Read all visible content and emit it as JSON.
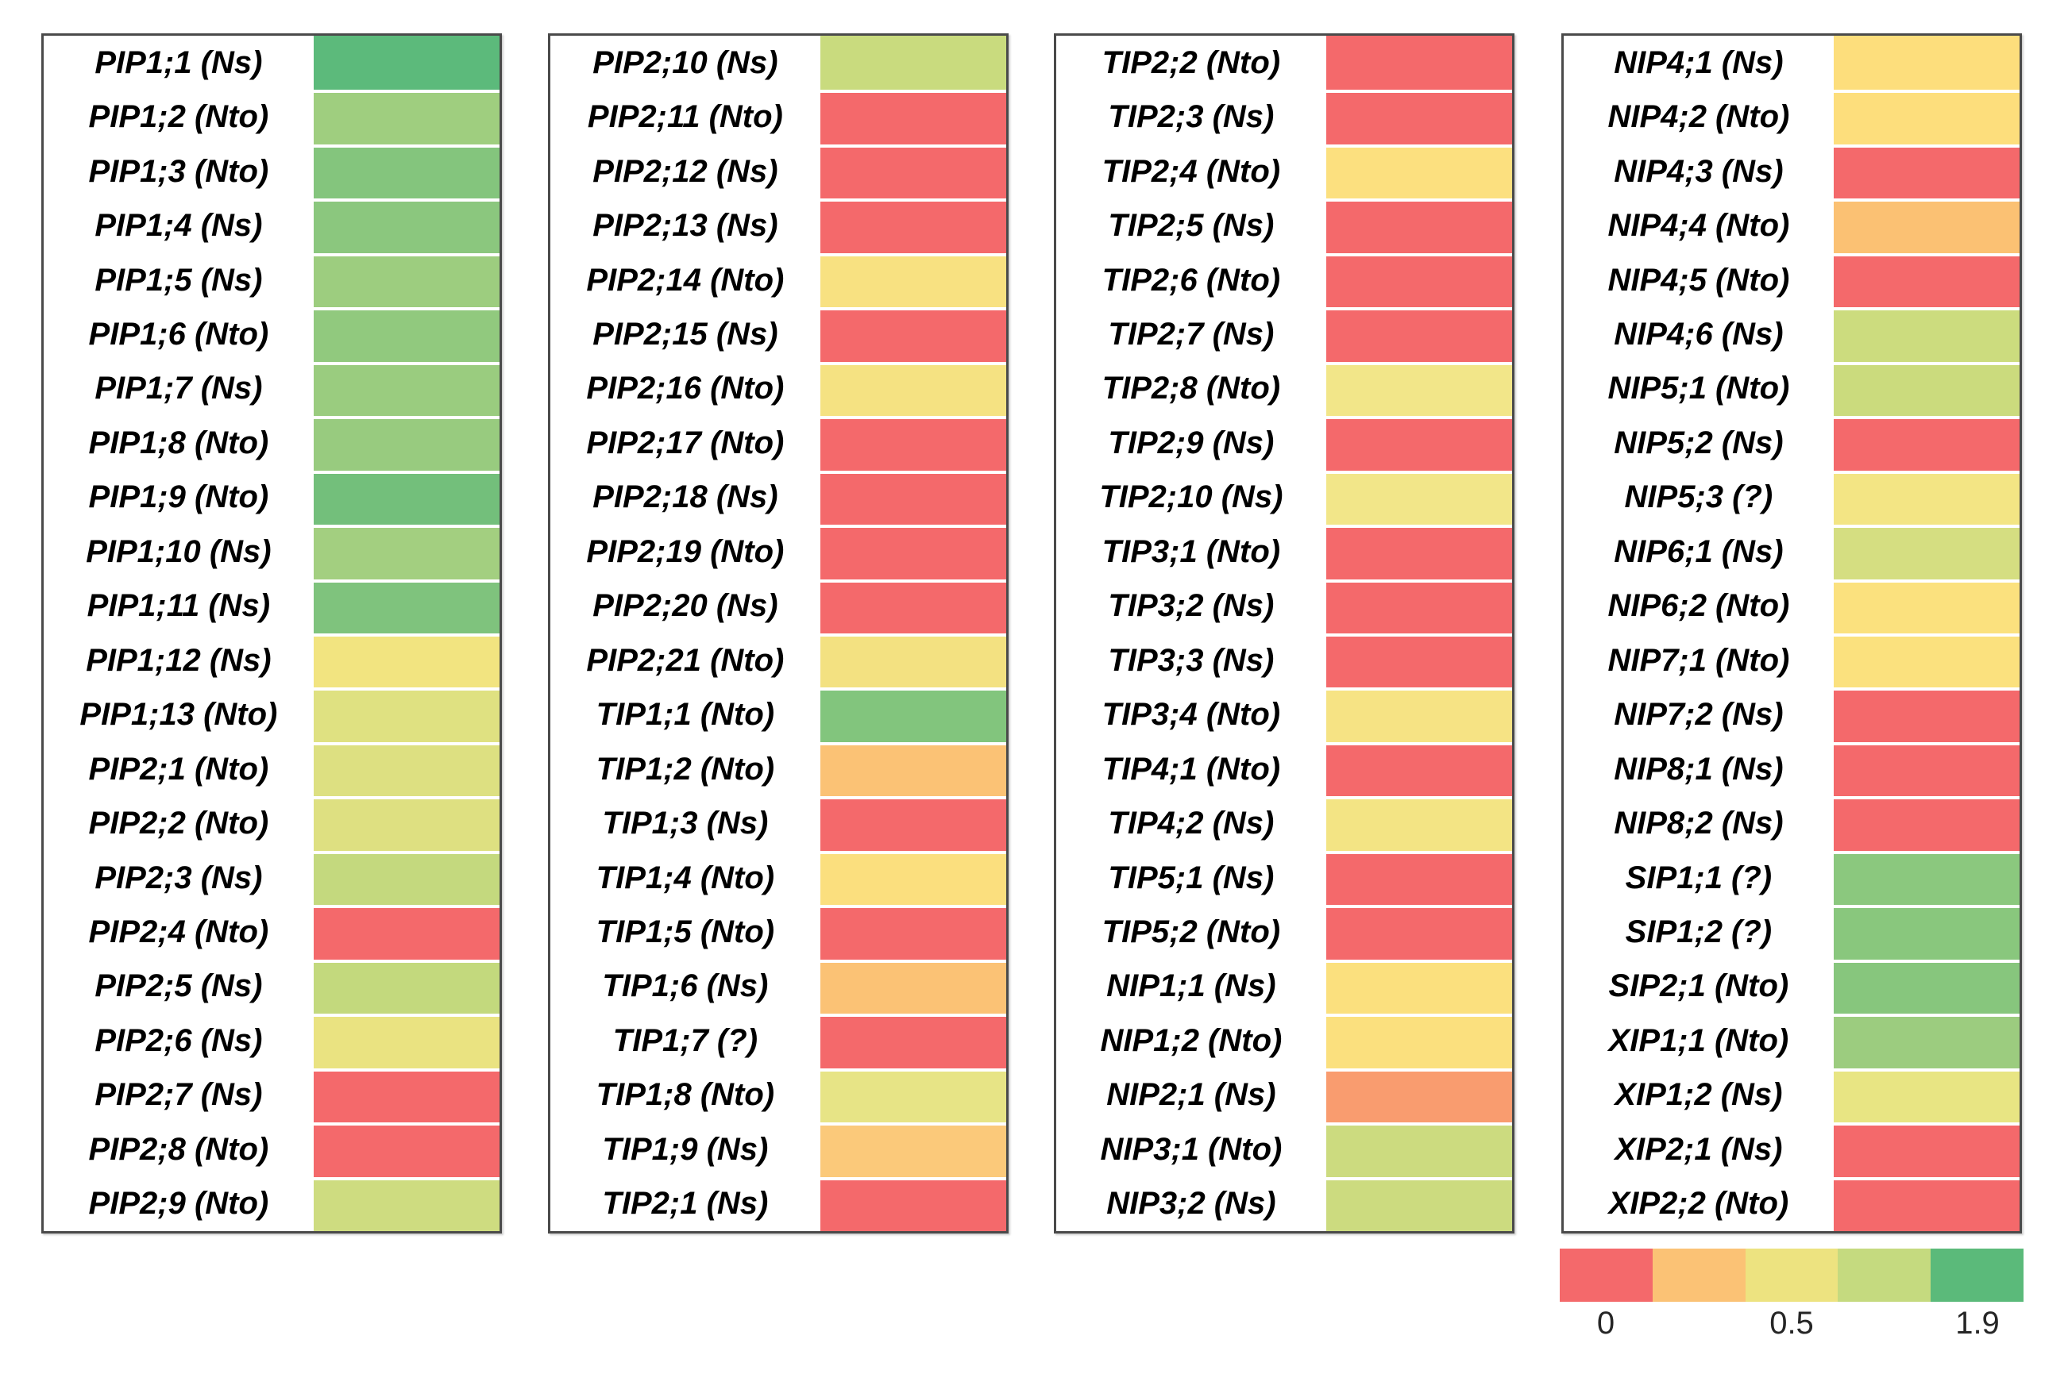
{
  "chart_data": {
    "type": "heatmap",
    "title": "",
    "colorbar": {
      "position": "bottom-right",
      "block_colors": [
        "#F4696B",
        "#FBC275",
        "#EDE380",
        "#C5DA7F",
        "#5BBA7A"
      ],
      "tick_labels": [
        "0",
        "0.5",
        "1.9"
      ],
      "range": [
        0,
        1.9
      ]
    },
    "panels": [
      {
        "rows": [
          {
            "label": "PIP1;1 (Ns)",
            "color": "#5CBA7B",
            "value_est": 1.8
          },
          {
            "label": "PIP1;2 (Nto)",
            "color": "#9FCE7F",
            "value_est": 1.1
          },
          {
            "label": "PIP1;3 (Nto)",
            "color": "#84C57D",
            "value_est": 1.3
          },
          {
            "label": "PIP1;4 (Ns)",
            "color": "#8BC77E",
            "value_est": 1.3
          },
          {
            "label": "PIP1;5 (Ns)",
            "color": "#9DCD7F",
            "value_est": 1.1
          },
          {
            "label": "PIP1;6 (Nto)",
            "color": "#91C97E",
            "value_est": 1.2
          },
          {
            "label": "PIP1;7 (Ns)",
            "color": "#9ACC7F",
            "value_est": 1.1
          },
          {
            "label": "PIP1;8 (Nto)",
            "color": "#98CB7F",
            "value_est": 1.1
          },
          {
            "label": "PIP1;9 (Nto)",
            "color": "#73BF7B",
            "value_est": 1.5
          },
          {
            "label": "PIP1;10 (Ns)",
            "color": "#A3CF80",
            "value_est": 1.0
          },
          {
            "label": "PIP1;11 (Ns)",
            "color": "#7FC37D",
            "value_est": 1.4
          },
          {
            "label": "PIP1;12 (Ns)",
            "color": "#F2E480",
            "value_est": 0.5
          },
          {
            "label": "PIP1;13 (Nto)",
            "color": "#DFE181",
            "value_est": 0.6
          },
          {
            "label": "PIP2;1 (Nto)",
            "color": "#DDE081",
            "value_est": 0.65
          },
          {
            "label": "PIP2;2 (Nto)",
            "color": "#DEE081",
            "value_est": 0.6
          },
          {
            "label": "PIP2;3 (Ns)",
            "color": "#C4D97E",
            "value_est": 0.8
          },
          {
            "label": "PIP2;4 (Nto)",
            "color": "#F4696B",
            "value_est": 0
          },
          {
            "label": "PIP2;5 (Ns)",
            "color": "#C3D97D",
            "value_est": 0.8
          },
          {
            "label": "PIP2;6 (Ns)",
            "color": "#EAE381",
            "value_est": 0.55
          },
          {
            "label": "PIP2;7 (Ns)",
            "color": "#F4696B",
            "value_est": 0
          },
          {
            "label": "PIP2;8 (Nto)",
            "color": "#F4696B",
            "value_est": 0
          },
          {
            "label": "PIP2;9 (Nto)",
            "color": "#CEDC80",
            "value_est": 0.75
          }
        ]
      },
      {
        "rows": [
          {
            "label": "PIP2;10 (Ns)",
            "color": "#C9DB7E",
            "value_est": 0.8
          },
          {
            "label": "PIP2;11 (Nto)",
            "color": "#F4696B",
            "value_est": 0
          },
          {
            "label": "PIP2;12 (Ns)",
            "color": "#F4696B",
            "value_est": 0
          },
          {
            "label": "PIP2;13 (Ns)",
            "color": "#F4696B",
            "value_est": 0
          },
          {
            "label": "PIP2;14 (Nto)",
            "color": "#F8E181",
            "value_est": 0.45
          },
          {
            "label": "PIP2;15 (Ns)",
            "color": "#F4696B",
            "value_est": 0
          },
          {
            "label": "PIP2;16 (Nto)",
            "color": "#F5E282",
            "value_est": 0.5
          },
          {
            "label": "PIP2;17 (Nto)",
            "color": "#F4696B",
            "value_est": 0
          },
          {
            "label": "PIP2;18 (Ns)",
            "color": "#F4696B",
            "value_est": 0
          },
          {
            "label": "PIP2;19 (Nto)",
            "color": "#F4696B",
            "value_est": 0
          },
          {
            "label": "PIP2;20 (Ns)",
            "color": "#F4696B",
            "value_est": 0
          },
          {
            "label": "PIP2;21 (Nto)",
            "color": "#F3E181",
            "value_est": 0.5
          },
          {
            "label": "TIP1;1 (Nto)",
            "color": "#82C57D",
            "value_est": 1.35
          },
          {
            "label": "TIP1;2 (Nto)",
            "color": "#FBC275",
            "value_est": 0.25
          },
          {
            "label": "TIP1;3 (Ns)",
            "color": "#F4696B",
            "value_est": 0
          },
          {
            "label": "TIP1;4 (Nto)",
            "color": "#FBDF7E",
            "value_est": 0.4
          },
          {
            "label": "TIP1;5 (Nto)",
            "color": "#F4696B",
            "value_est": 0
          },
          {
            "label": "TIP1;6 (Ns)",
            "color": "#FBC275",
            "value_est": 0.25
          },
          {
            "label": "TIP1;7 (?)",
            "color": "#F4696B",
            "value_est": 0
          },
          {
            "label": "TIP1;8 (Nto)",
            "color": "#E7E486",
            "value_est": 0.6
          },
          {
            "label": "TIP1;9 (Ns)",
            "color": "#FBC97A",
            "value_est": 0.3
          },
          {
            "label": "TIP2;1 (Ns)",
            "color": "#F4696B",
            "value_est": 0
          }
        ]
      },
      {
        "rows": [
          {
            "label": "TIP2;2 (Nto)",
            "color": "#F4696B",
            "value_est": 0
          },
          {
            "label": "TIP2;3 (Ns)",
            "color": "#F4696B",
            "value_est": 0
          },
          {
            "label": "TIP2;4 (Nto)",
            "color": "#FCE07F",
            "value_est": 0.4
          },
          {
            "label": "TIP2;5 (Ns)",
            "color": "#F4696B",
            "value_est": 0
          },
          {
            "label": "TIP2;6 (Nto)",
            "color": "#F4696B",
            "value_est": 0
          },
          {
            "label": "TIP2;7 (Ns)",
            "color": "#F4696B",
            "value_est": 0
          },
          {
            "label": "TIP2;8 (Nto)",
            "color": "#F2E689",
            "value_est": 0.55
          },
          {
            "label": "TIP2;9 (Ns)",
            "color": "#F4696B",
            "value_est": 0
          },
          {
            "label": "TIP2;10 (Ns)",
            "color": "#F2E689",
            "value_est": 0.55
          },
          {
            "label": "TIP3;1 (Nto)",
            "color": "#F4696B",
            "value_est": 0
          },
          {
            "label": "TIP3;2 (Ns)",
            "color": "#F4696B",
            "value_est": 0
          },
          {
            "label": "TIP3;3 (Ns)",
            "color": "#F4696B",
            "value_est": 0
          },
          {
            "label": "TIP3;4 (Nto)",
            "color": "#F6E384",
            "value_est": 0.5
          },
          {
            "label": "TIP4;1 (Nto)",
            "color": "#F4696B",
            "value_est": 0
          },
          {
            "label": "TIP4;2 (Ns)",
            "color": "#F3E484",
            "value_est": 0.5
          },
          {
            "label": "TIP5;1 (Ns)",
            "color": "#F4696B",
            "value_est": 0
          },
          {
            "label": "TIP5;2 (Nto)",
            "color": "#F4696B",
            "value_est": 0
          },
          {
            "label": "NIP1;1 (Ns)",
            "color": "#FBE07E",
            "value_est": 0.4
          },
          {
            "label": "NIP1;2 (Nto)",
            "color": "#FBE07E",
            "value_est": 0.4
          },
          {
            "label": "NIP2;1 (Ns)",
            "color": "#F99C6F",
            "value_est": 0.2
          },
          {
            "label": "NIP3;1 (Nto)",
            "color": "#CCDB7F",
            "value_est": 0.75
          },
          {
            "label": "NIP3;2 (Ns)",
            "color": "#CCDB7F",
            "value_est": 0.75
          }
        ]
      },
      {
        "rows": [
          {
            "label": "NIP4;1 (Ns)",
            "color": "#FDDE7C",
            "value_est": 0.4
          },
          {
            "label": "NIP4;2 (Nto)",
            "color": "#FDDE7C",
            "value_est": 0.4
          },
          {
            "label": "NIP4;3 (Ns)",
            "color": "#F4696B",
            "value_est": 0
          },
          {
            "label": "NIP4;4 (Nto)",
            "color": "#FBC173",
            "value_est": 0.25
          },
          {
            "label": "NIP4;5 (Nto)",
            "color": "#F4696B",
            "value_est": 0
          },
          {
            "label": "NIP4;6 (Ns)",
            "color": "#CCDC7E",
            "value_est": 0.75
          },
          {
            "label": "NIP5;1 (Nto)",
            "color": "#CBDB7D",
            "value_est": 0.75
          },
          {
            "label": "NIP5;2 (Ns)",
            "color": "#F4696B",
            "value_est": 0
          },
          {
            "label": "NIP5;3 (?)",
            "color": "#F3E584",
            "value_est": 0.5
          },
          {
            "label": "NIP6;1 (Ns)",
            "color": "#D5DE81",
            "value_est": 0.7
          },
          {
            "label": "NIP6;2 (Nto)",
            "color": "#FBE17E",
            "value_est": 0.4
          },
          {
            "label": "NIP7;1 (Nto)",
            "color": "#FBE17E",
            "value_est": 0.4
          },
          {
            "label": "NIP7;2 (Ns)",
            "color": "#F4696B",
            "value_est": 0
          },
          {
            "label": "NIP8;1 (Ns)",
            "color": "#F4696B",
            "value_est": 0
          },
          {
            "label": "NIP8;2 (Ns)",
            "color": "#F4696B",
            "value_est": 0
          },
          {
            "label": "SIP1;1 (?)",
            "color": "#8BC87E",
            "value_est": 1.3
          },
          {
            "label": "SIP1;2 (?)",
            "color": "#89C77D",
            "value_est": 1.3
          },
          {
            "label": "SIP2;1 (Nto)",
            "color": "#87C67D",
            "value_est": 1.3
          },
          {
            "label": "XIP1;1 (Nto)",
            "color": "#9CCC7F",
            "value_est": 1.1
          },
          {
            "label": "XIP1;2 (Ns)",
            "color": "#E8E583",
            "value_est": 0.6
          },
          {
            "label": "XIP2;1 (Ns)",
            "color": "#F4696B",
            "value_est": 0
          },
          {
            "label": "XIP2;2 (Nto)",
            "color": "#F4696B",
            "value_est": 0
          }
        ]
      }
    ]
  }
}
